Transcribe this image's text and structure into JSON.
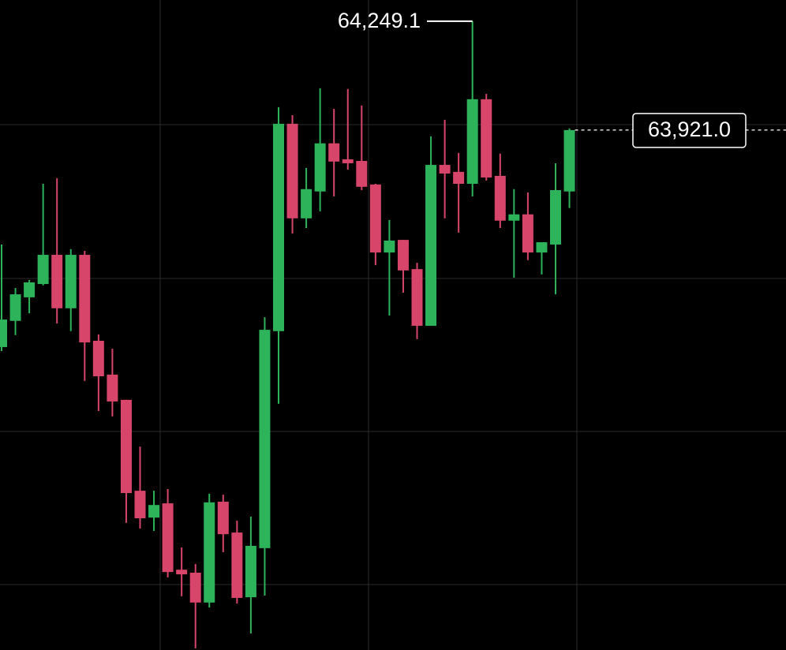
{
  "chart_data": {
    "type": "candlestick",
    "up_color": "#2db35a",
    "down_color": "#d8456b",
    "ylim": [
      62354,
      64313
    ],
    "max_label": "64,249.1",
    "last_label": "63,921.0",
    "open": [
      63267,
      63346,
      63417,
      63457,
      63545,
      63384,
      63545,
      63286,
      63184,
      63108,
      62834,
      62753,
      62796,
      62596,
      62587,
      62497,
      62801,
      62708,
      62513,
      62661,
      63315,
      63940,
      63655,
      63736,
      63881,
      63833,
      63828,
      63757,
      63552,
      63590,
      63502,
      63331,
      63816,
      63795,
      63759,
      64014,
      63783,
      63648,
      63667,
      63552,
      63576,
      63736
    ],
    "high": [
      63576,
      63445,
      63469,
      63759,
      63776,
      63562,
      63557,
      63305,
      63262,
      63108,
      62967,
      62834,
      62839,
      62663,
      62613,
      62825,
      62822,
      62744,
      62756,
      63357,
      63990,
      63966,
      63807,
      64047,
      63985,
      64045,
      63995,
      63759,
      63650,
      63590,
      63521,
      63902,
      63952,
      63852,
      64249.1,
      64030,
      63850,
      63743,
      63733,
      63583,
      63821,
      63926
    ],
    "low": [
      63255,
      63303,
      63369,
      63453,
      63338,
      63315,
      63165,
      63074,
      63058,
      62737,
      62720,
      62713,
      62573,
      62516,
      62359,
      62482,
      62649,
      62494,
      62404,
      62518,
      63096,
      63609,
      63626,
      63676,
      63721,
      63802,
      63740,
      63514,
      63362,
      63431,
      63291,
      63331,
      63655,
      63612,
      63721,
      63769,
      63626,
      63476,
      63529,
      63486,
      63426,
      63686
    ],
    "close": [
      63350,
      63426,
      63462,
      63545,
      63384,
      63545,
      63281,
      63179,
      63103,
      62827,
      62751,
      62791,
      62589,
      62582,
      62497,
      62799,
      62703,
      62511,
      62668,
      63319,
      63940,
      63655,
      63743,
      63881,
      63826,
      63821,
      63750,
      63552,
      63588,
      63498,
      63331,
      63816,
      63790,
      63759,
      64014,
      63778,
      63648,
      63667,
      63552,
      63583,
      63740,
      63921.0
    ]
  }
}
